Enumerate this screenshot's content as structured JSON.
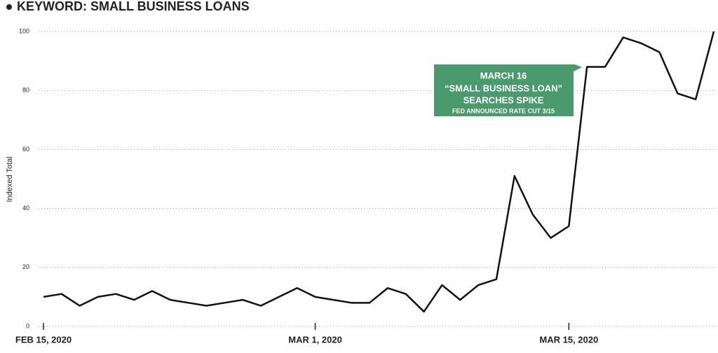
{
  "chart_data": {
    "type": "line",
    "title": "KEYWORD: SMALL BUSINESS LOANS",
    "y_label": "Indexed Total",
    "x": [
      "2020-02-15",
      "2020-02-16",
      "2020-02-17",
      "2020-02-18",
      "2020-02-19",
      "2020-02-20",
      "2020-02-21",
      "2020-02-22",
      "2020-02-23",
      "2020-02-24",
      "2020-02-25",
      "2020-02-26",
      "2020-02-27",
      "2020-02-28",
      "2020-02-29",
      "2020-03-01",
      "2020-03-02",
      "2020-03-03",
      "2020-03-04",
      "2020-03-05",
      "2020-03-06",
      "2020-03-07",
      "2020-03-08",
      "2020-03-09",
      "2020-03-10",
      "2020-03-11",
      "2020-03-12",
      "2020-03-13",
      "2020-03-14",
      "2020-03-15",
      "2020-03-16",
      "2020-03-17",
      "2020-03-18",
      "2020-03-19",
      "2020-03-20",
      "2020-03-21",
      "2020-03-22",
      "2020-03-23"
    ],
    "series": [
      {
        "name": "small business loans",
        "color": "#111111",
        "values": [
          10,
          11,
          7,
          10,
          11,
          9,
          12,
          9,
          8,
          7,
          8,
          9,
          7,
          10,
          13,
          10,
          9,
          8,
          8,
          13,
          11,
          5,
          14,
          9,
          14,
          16,
          51,
          38,
          30,
          34,
          88,
          88,
          98,
          96,
          93,
          79,
          77,
          100
        ]
      }
    ],
    "xlim": [
      "2020-02-15",
      "2020-03-23"
    ],
    "xticks": [
      {
        "value": "2020-02-15",
        "label": "FEB 15, 2020"
      },
      {
        "value": "2020-03-01",
        "label": "MAR 1, 2020"
      },
      {
        "value": "2020-03-15",
        "label": "MAR 15, 2020"
      }
    ],
    "ylim": [
      0,
      100
    ],
    "yticks": [
      0,
      20,
      40,
      60,
      80,
      100
    ],
    "grid": true,
    "annotation": {
      "lines": [
        "MARCH 16",
        "“SMALL BUSINESS LOAN”",
        "SEARCHES SPIKE",
        "FED ANNOUNCED RATE CUT 3/15"
      ],
      "color": "#4a9a6e"
    }
  }
}
